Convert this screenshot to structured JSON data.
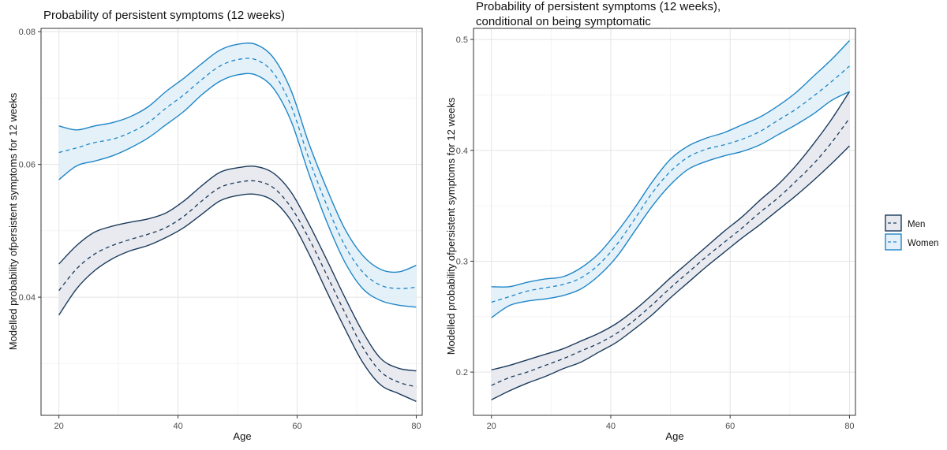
{
  "chart_data": [
    {
      "type": "line",
      "title": "Probability of persistent symptoms (12 weeks)",
      "xlabel": "Age",
      "ylabel": "Modelled probability ofpersistent symptoms for 12 weeks",
      "xlim": [
        17,
        81
      ],
      "ylim": [
        0.0222,
        0.0805
      ],
      "xticks": [
        20,
        40,
        60,
        80
      ],
      "yticks": [
        0.04,
        0.06,
        0.08
      ],
      "ytick_labels": [
        "0.04",
        "0.06",
        "0.08"
      ],
      "grid": true,
      "x": [
        20,
        23,
        26,
        29,
        32,
        35,
        38,
        41,
        44,
        47,
        50,
        53,
        56,
        59,
        62,
        65,
        68,
        71,
        74,
        77,
        80
      ],
      "series": [
        {
          "name": "Men",
          "color": "#1b3a5c",
          "fill": "#e7e9ee",
          "estimate": [
            0.041,
            0.0443,
            0.0465,
            0.0478,
            0.0487,
            0.0495,
            0.0505,
            0.0522,
            0.0545,
            0.0565,
            0.0573,
            0.0575,
            0.0565,
            0.0535,
            0.0488,
            0.0433,
            0.0377,
            0.0325,
            0.0288,
            0.0272,
            0.0265
          ],
          "lower": [
            0.0373,
            0.0413,
            0.044,
            0.0458,
            0.047,
            0.0478,
            0.049,
            0.0505,
            0.0525,
            0.0545,
            0.0553,
            0.0555,
            0.0545,
            0.0515,
            0.0465,
            0.0408,
            0.0353,
            0.0302,
            0.0268,
            0.0255,
            0.0243
          ],
          "upper": [
            0.045,
            0.0478,
            0.0498,
            0.0507,
            0.0513,
            0.0518,
            0.0527,
            0.0545,
            0.0568,
            0.0588,
            0.0595,
            0.0597,
            0.0587,
            0.0558,
            0.051,
            0.0456,
            0.04,
            0.0348,
            0.0308,
            0.0293,
            0.0289
          ]
        },
        {
          "name": "Women",
          "color": "#1f86c7",
          "fill": "#e3f0f9",
          "estimate": [
            0.0618,
            0.0625,
            0.0633,
            0.0638,
            0.0648,
            0.0663,
            0.0685,
            0.0705,
            0.0728,
            0.0748,
            0.0758,
            0.0758,
            0.0738,
            0.0688,
            0.0608,
            0.0538,
            0.0478,
            0.0438,
            0.0418,
            0.0413,
            0.0415
          ],
          "lower": [
            0.0577,
            0.0598,
            0.0605,
            0.0613,
            0.0625,
            0.064,
            0.066,
            0.068,
            0.0705,
            0.0725,
            0.0735,
            0.0735,
            0.0715,
            0.0665,
            0.0585,
            0.0513,
            0.0453,
            0.0413,
            0.0395,
            0.0388,
            0.0385
          ],
          "upper": [
            0.0658,
            0.0652,
            0.0658,
            0.0663,
            0.0672,
            0.0687,
            0.071,
            0.073,
            0.0752,
            0.0772,
            0.0781,
            0.0781,
            0.0761,
            0.0711,
            0.0631,
            0.0563,
            0.0503,
            0.0463,
            0.0442,
            0.0438,
            0.0448
          ]
        }
      ]
    },
    {
      "type": "line",
      "title": "Probability of persistent symptoms (12 weeks),",
      "subtitle": "conditional on being symptomatic",
      "xlabel": "Age",
      "ylabel": "Modelled probability ofpersistent symptoms for 12 weeks",
      "xlim": [
        17,
        81
      ],
      "ylim": [
        0.161,
        0.51
      ],
      "xticks": [
        20,
        40,
        60,
        80
      ],
      "yticks": [
        0.2,
        0.3,
        0.4,
        0.5
      ],
      "ytick_labels": [
        "0.2",
        "0.3",
        "0.4",
        "0.5"
      ],
      "grid": true,
      "x": [
        20,
        23,
        26,
        29,
        32,
        35,
        38,
        41,
        44,
        47,
        50,
        53,
        56,
        59,
        62,
        65,
        68,
        71,
        74,
        77,
        80
      ],
      "series": [
        {
          "name": "Men",
          "color": "#1b3a5c",
          "fill": "#e7e9ee",
          "estimate": [
            0.188,
            0.195,
            0.2,
            0.206,
            0.212,
            0.219,
            0.226,
            0.235,
            0.247,
            0.261,
            0.276,
            0.29,
            0.304,
            0.317,
            0.33,
            0.344,
            0.357,
            0.372,
            0.388,
            0.407,
            0.429
          ],
          "lower": [
            0.175,
            0.183,
            0.19,
            0.196,
            0.203,
            0.209,
            0.218,
            0.227,
            0.239,
            0.252,
            0.267,
            0.281,
            0.295,
            0.308,
            0.321,
            0.333,
            0.346,
            0.359,
            0.373,
            0.388,
            0.404
          ],
          "upper": [
            0.202,
            0.206,
            0.211,
            0.216,
            0.221,
            0.228,
            0.235,
            0.244,
            0.256,
            0.27,
            0.285,
            0.299,
            0.313,
            0.327,
            0.34,
            0.355,
            0.369,
            0.386,
            0.406,
            0.428,
            0.453
          ]
        },
        {
          "name": "Women",
          "color": "#1f86c7",
          "fill": "#e3f0f9",
          "estimate": [
            0.263,
            0.268,
            0.273,
            0.276,
            0.279,
            0.285,
            0.297,
            0.315,
            0.338,
            0.362,
            0.381,
            0.394,
            0.401,
            0.405,
            0.41,
            0.417,
            0.427,
            0.437,
            0.449,
            0.462,
            0.476
          ],
          "lower": [
            0.249,
            0.26,
            0.264,
            0.266,
            0.269,
            0.275,
            0.287,
            0.304,
            0.327,
            0.35,
            0.369,
            0.383,
            0.39,
            0.395,
            0.399,
            0.405,
            0.414,
            0.423,
            0.433,
            0.445,
            0.453
          ],
          "upper": [
            0.277,
            0.277,
            0.281,
            0.284,
            0.286,
            0.294,
            0.307,
            0.326,
            0.348,
            0.372,
            0.392,
            0.404,
            0.411,
            0.416,
            0.423,
            0.43,
            0.44,
            0.452,
            0.467,
            0.482,
            0.499
          ]
        }
      ]
    }
  ],
  "legend": {
    "placement": "right",
    "items": [
      {
        "label": "Men",
        "color": "#1b3a5c",
        "fill": "#e7e9ee"
      },
      {
        "label": "Women",
        "color": "#1f86c7",
        "fill": "#e3f0f9"
      }
    ]
  }
}
